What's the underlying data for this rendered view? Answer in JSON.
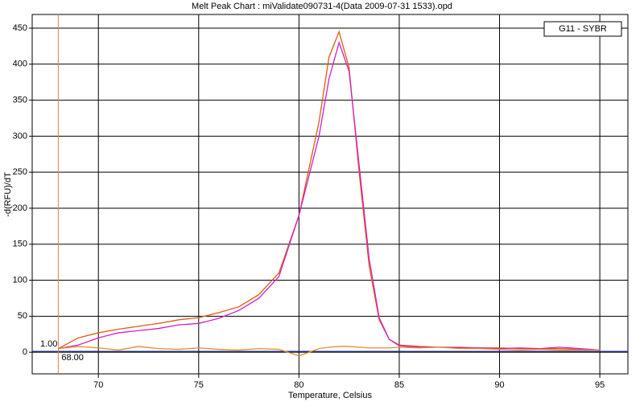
{
  "chart_data": {
    "type": "line",
    "title": "Melt Peak Chart : miValidate090731-4(Data 2009-07-31 1533).opd",
    "x_label": "Temperature, Celsius",
    "y_label": "-d(RFU)/dT",
    "legend_text": "G11 - SYBR",
    "x": [
      68,
      69,
      70,
      71,
      72,
      73,
      74,
      75,
      76,
      77,
      78,
      79,
      80,
      81,
      81.5,
      82,
      82.5,
      83,
      83.5,
      84,
      84.5,
      85,
      86,
      87,
      88,
      89,
      90,
      91,
      92,
      93,
      94,
      95
    ],
    "series": [
      {
        "color": "#e05a10",
        "values": [
          5,
          20,
          27,
          32,
          36,
          40,
          45,
          48,
          55,
          63,
          80,
          110,
          190,
          320,
          410,
          445,
          395,
          250,
          120,
          45,
          18,
          10,
          8,
          7,
          7,
          6,
          6,
          5,
          5,
          5,
          4,
          3
        ]
      },
      {
        "color": "#d020c8",
        "values": [
          5,
          10,
          20,
          27,
          30,
          33,
          38,
          40,
          47,
          58,
          75,
          105,
          190,
          300,
          380,
          430,
          390,
          260,
          130,
          48,
          18,
          9,
          7,
          7,
          6,
          6,
          5,
          6,
          5,
          7,
          5,
          3
        ]
      },
      {
        "color": "#e09020",
        "values": [
          5,
          8,
          6,
          3,
          8,
          5,
          4,
          6,
          4,
          3,
          5,
          4,
          -5,
          5,
          7,
          8,
          8,
          7,
          6,
          6,
          6,
          7,
          6,
          7,
          5,
          5,
          4,
          3,
          4,
          3,
          3,
          3
        ]
      }
    ],
    "threshold": {
      "value": 1,
      "label": "1.00",
      "color": "#1a237e"
    },
    "cursor": {
      "value": 68,
      "label": "68.00",
      "color": "#e08040"
    },
    "xlim": [
      66.7,
      96.4
    ],
    "ylim": [
      -30,
      469
    ],
    "xticks": [
      70,
      75,
      80,
      85,
      90,
      95
    ],
    "yticks": [
      0,
      50,
      100,
      150,
      200,
      250,
      300,
      350,
      400,
      450
    ],
    "grid": true
  }
}
